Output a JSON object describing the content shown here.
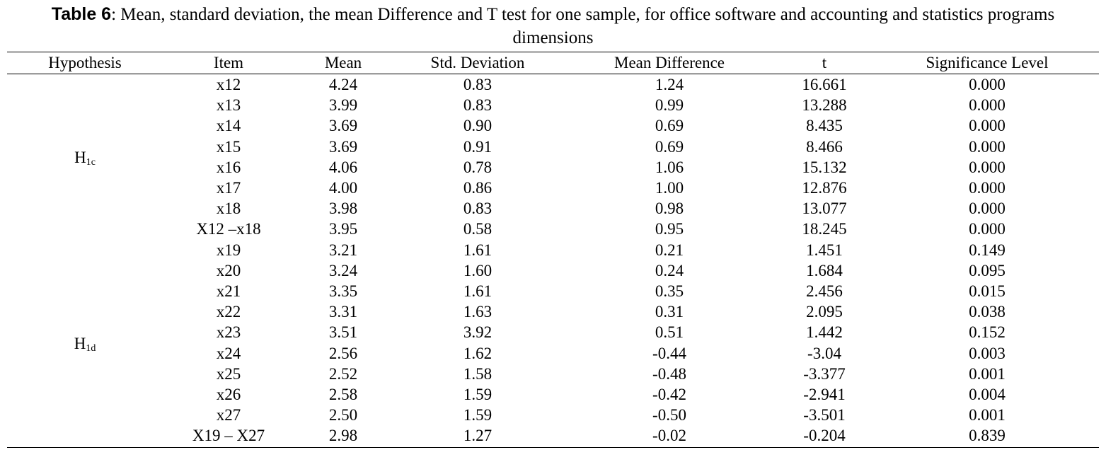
{
  "title": {
    "label": "Table 6",
    "text": ": Mean, standard deviation, the mean Difference and T test for one sample, for office software and accounting and statistics programs dimensions"
  },
  "table": {
    "header": [
      "Hypothesis",
      "Item",
      "Mean",
      "Std. Deviation",
      "Mean Difference",
      "t",
      "Significance Level"
    ],
    "groups": [
      {
        "hypothesis": {
          "base": "H",
          "sub": "1c"
        },
        "rows": [
          [
            "x12",
            "4.24",
            "0.83",
            "1.24",
            "16.661",
            "0.000"
          ],
          [
            "x13",
            "3.99",
            "0.83",
            "0.99",
            "13.288",
            "0.000"
          ],
          [
            "x14",
            "3.69",
            "0.90",
            "0.69",
            "8.435",
            "0.000"
          ],
          [
            "x15",
            "3.69",
            "0.91",
            "0.69",
            "8.466",
            "0.000"
          ],
          [
            "x16",
            "4.06",
            "0.78",
            "1.06",
            "15.132",
            "0.000"
          ],
          [
            "x17",
            "4.00",
            "0.86",
            "1.00",
            "12.876",
            "0.000"
          ],
          [
            "x18",
            "3.98",
            "0.83",
            "0.98",
            "13.077",
            "0.000"
          ],
          [
            "X12 –x18",
            "3.95",
            "0.58",
            "0.95",
            "18.245",
            "0.000"
          ]
        ]
      },
      {
        "hypothesis": {
          "base": "H",
          "sub": "1d"
        },
        "rows": [
          [
            "x19",
            "3.21",
            "1.61",
            "0.21",
            "1.451",
            "0.149"
          ],
          [
            "x20",
            "3.24",
            "1.60",
            "0.24",
            "1.684",
            "0.095"
          ],
          [
            "x21",
            "3.35",
            "1.61",
            "0.35",
            "2.456",
            "0.015"
          ],
          [
            "x22",
            "3.31",
            "1.63",
            "0.31",
            "2.095",
            "0.038"
          ],
          [
            "x23",
            "3.51",
            "3.92",
            "0.51",
            "1.442",
            "0.152"
          ],
          [
            "x24",
            "2.56",
            "1.62",
            "-0.44",
            "-3.04",
            "0.003"
          ],
          [
            "x25",
            "2.52",
            "1.58",
            "-0.48",
            "-3.377",
            "0.001"
          ],
          [
            "x26",
            "2.58",
            "1.59",
            "-0.42",
            "-2.941",
            "0.004"
          ],
          [
            "x27",
            "2.50",
            "1.59",
            "-0.50",
            "-3.501",
            "0.001"
          ],
          [
            "X19 – X27",
            "2.98",
            "1.27",
            "-0.02",
            "-0.204",
            "0.839"
          ]
        ]
      }
    ]
  }
}
